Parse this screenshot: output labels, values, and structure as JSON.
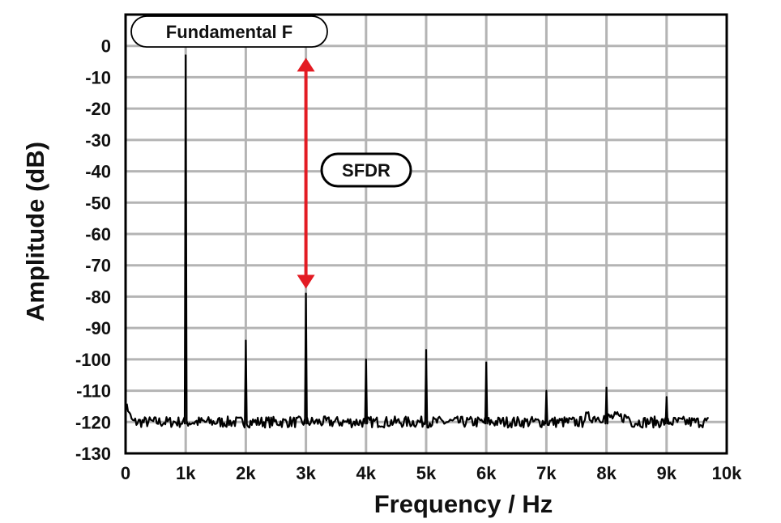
{
  "chart_data": {
    "type": "line",
    "title": "",
    "xlabel": "Frequency / Hz",
    "ylabel": "Amplitude (dB)",
    "xlim": [
      0,
      10000
    ],
    "ylim": [
      -130,
      10
    ],
    "x_ticks": [
      {
        "value": 0,
        "label": "0"
      },
      {
        "value": 1000,
        "label": "1k"
      },
      {
        "value": 2000,
        "label": "2k"
      },
      {
        "value": 3000,
        "label": "3k"
      },
      {
        "value": 4000,
        "label": "4k"
      },
      {
        "value": 5000,
        "label": "5k"
      },
      {
        "value": 6000,
        "label": "6k"
      },
      {
        "value": 7000,
        "label": "7k"
      },
      {
        "value": 8000,
        "label": "8k"
      },
      {
        "value": 9000,
        "label": "9k"
      },
      {
        "value": 10000,
        "label": "10k"
      }
    ],
    "y_ticks": [
      {
        "value": 0,
        "label": "0"
      },
      {
        "value": -10,
        "label": "-10"
      },
      {
        "value": -20,
        "label": "-20"
      },
      {
        "value": -30,
        "label": "-30"
      },
      {
        "value": -40,
        "label": "-40"
      },
      {
        "value": -50,
        "label": "-50"
      },
      {
        "value": -60,
        "label": "-60"
      },
      {
        "value": -70,
        "label": "-70"
      },
      {
        "value": -80,
        "label": "-80"
      },
      {
        "value": -90,
        "label": "-90"
      },
      {
        "value": -100,
        "label": "-100"
      },
      {
        "value": -110,
        "label": "-110"
      },
      {
        "value": -120,
        "label": "-120"
      },
      {
        "value": -130,
        "label": "-130"
      }
    ],
    "grid": true,
    "noise_floor_db": -120,
    "x_max_plotted": 9700,
    "peaks": [
      {
        "x": 1000,
        "y": -3
      },
      {
        "x": 2000,
        "y": -94
      },
      {
        "x": 3000,
        "y": -79
      },
      {
        "x": 4000,
        "y": -100
      },
      {
        "x": 5000,
        "y": -97
      },
      {
        "x": 6000,
        "y": -101
      },
      {
        "x": 7000,
        "y": -110
      },
      {
        "x": 8000,
        "y": -109
      },
      {
        "x": 9000,
        "y": -112
      }
    ],
    "annotations": {
      "fundamental_label": "Fundamental F",
      "fundamental_x": 1000,
      "sfdr_label": "SFDR",
      "sfdr_arrow": {
        "x": 3000,
        "y_top": -3,
        "y_bottom": -79
      }
    },
    "colors": {
      "series": "#000000",
      "grid": "#b4b4b4",
      "frame": "#000000",
      "arrow": "#e31b23"
    }
  }
}
